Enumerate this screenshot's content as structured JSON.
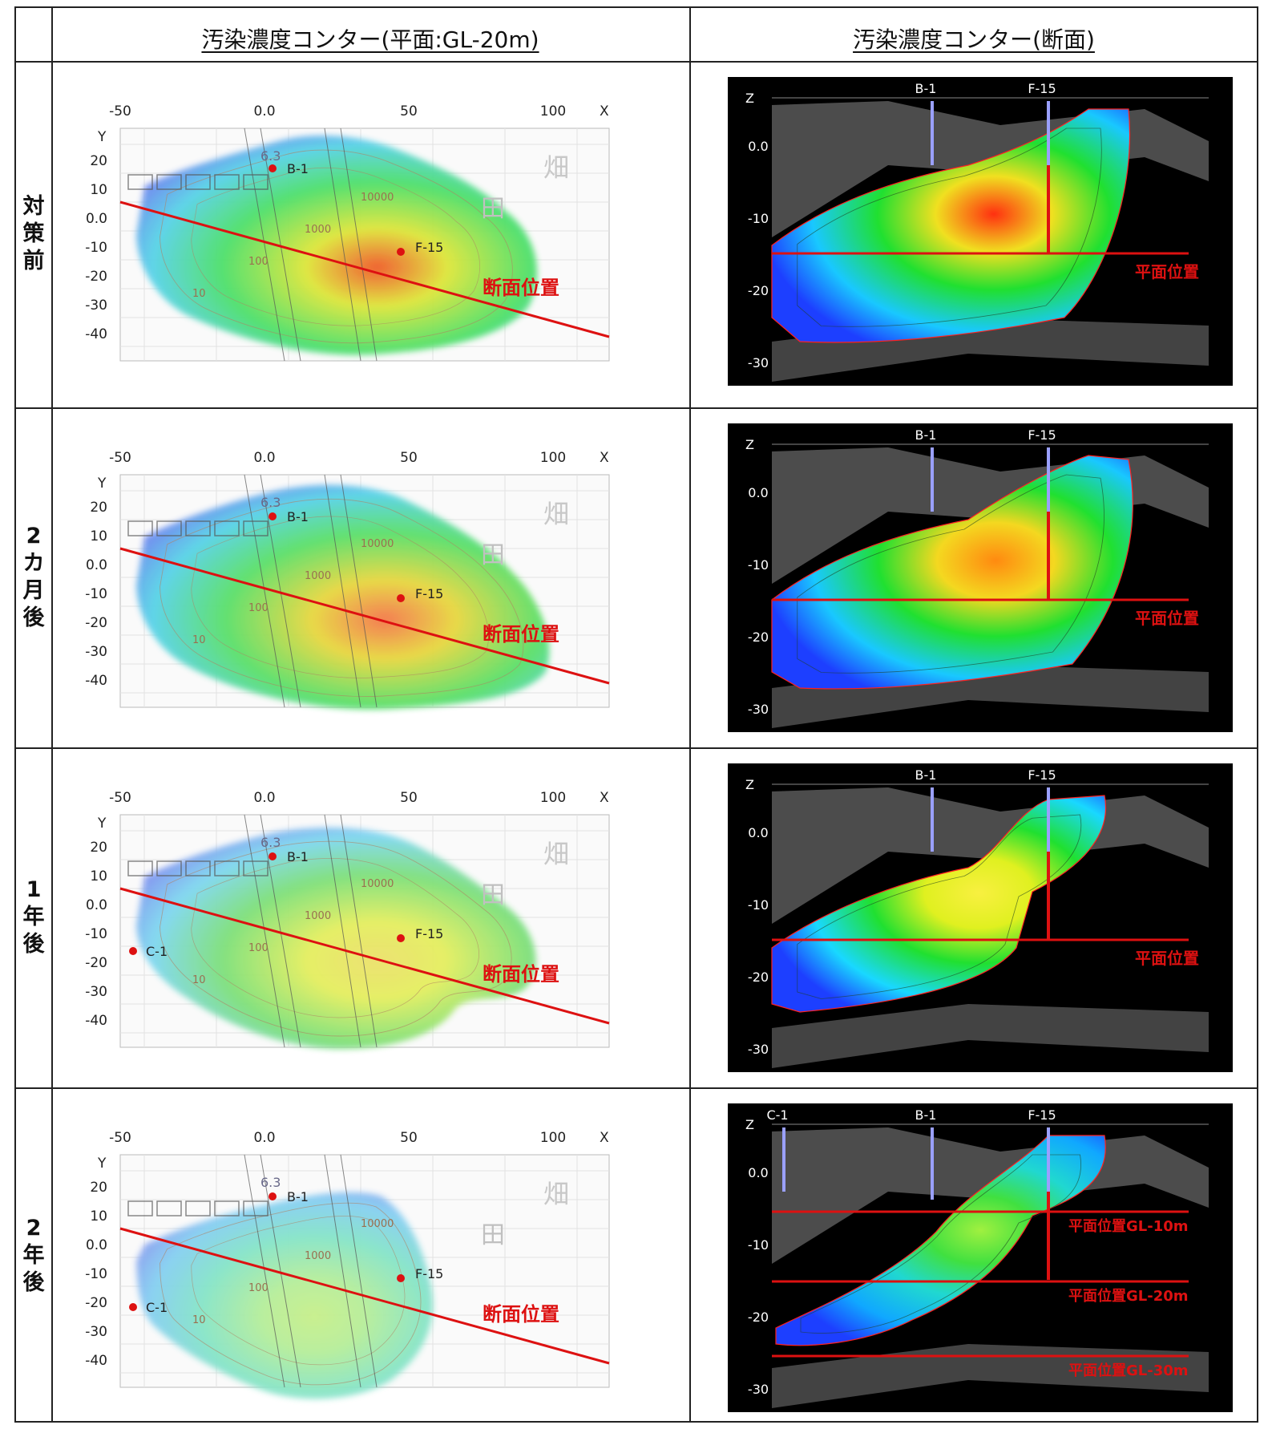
{
  "headers": {
    "plan": "汚染濃度コンター(平面:GL-20m)",
    "section": "汚染濃度コンター(断面)"
  },
  "rows": [
    {
      "label": [
        "対",
        "策",
        "前"
      ],
      "stage": 0
    },
    {
      "label": [
        "2",
        "カ",
        "月",
        "後"
      ],
      "stage": 1
    },
    {
      "label": [
        "1",
        "年",
        "後"
      ],
      "stage": 2
    },
    {
      "label": [
        "2",
        "年",
        "後"
      ],
      "stage": 3
    }
  ],
  "plan": {
    "x_ticks": [
      "-50",
      "0.0",
      "50",
      "100"
    ],
    "x_label": "X",
    "y_label": "Y",
    "y_ticks": [
      "20",
      "10",
      "0.0",
      "-10",
      "-20",
      "-30",
      "-40"
    ],
    "section_line_label": "断面位置",
    "field_label": "畑",
    "field_label_2": "田",
    "road_label": "6.3",
    "wells": {
      "b1": "B-1",
      "f15": "F-15",
      "c1": "C-1"
    },
    "contour_labels": [
      "10",
      "100",
      "1000",
      "10000"
    ]
  },
  "section": {
    "z_label": "Z",
    "z_ticks": [
      "0.0",
      "-10",
      "-20",
      "-30"
    ],
    "wells": {
      "b1": "B-1",
      "f15": "F-15",
      "c1": "C-1"
    },
    "plan_position": "平面位置",
    "plan_positions_multi": [
      "平面位置GL-10m",
      "平面位置GL-20m",
      "平面位置GL-30m"
    ]
  },
  "colors": {
    "section_line": "#dd1111",
    "well_marker": "#dd1111",
    "section_bg": "#000000",
    "well_pipe": "#9aa0ff"
  }
}
